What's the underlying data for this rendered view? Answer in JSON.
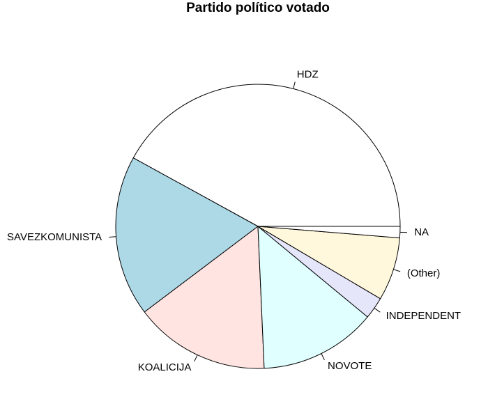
{
  "chart_data": {
    "type": "pie",
    "title": "Partido político votado",
    "slices": [
      {
        "label": "HDZ",
        "value": 42.0,
        "color": "#ffffff"
      },
      {
        "label": "SAVEZKOMUNISTA",
        "value": 18.3,
        "color": "#add8e6"
      },
      {
        "label": "KOALICIJA",
        "value": 15.4,
        "color": "#ffe4e1"
      },
      {
        "label": "NOVOTE",
        "value": 13.3,
        "color": "#e0ffff"
      },
      {
        "label": "INDEPENDENT",
        "value": 2.5,
        "color": "#e6e6fa"
      },
      {
        "label": "(Other)",
        "value": 7.2,
        "color": "#fff8dc"
      },
      {
        "label": "NA",
        "value": 1.3,
        "color": "#ffffff"
      }
    ],
    "start_angle_deg": 0,
    "direction": "counterclockwise",
    "legend": "none"
  }
}
